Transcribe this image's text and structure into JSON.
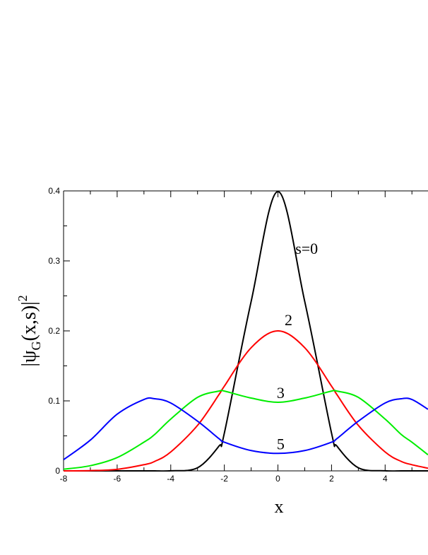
{
  "chart_data": {
    "type": "line",
    "title": "",
    "xlabel": "x",
    "ylabel": {
      "base": "|ψ",
      "subscript": "G",
      "middle": "(x,s)|",
      "superscript": "2"
    },
    "xlim": [
      -8,
      5.6
    ],
    "ylim": [
      0,
      0.4
    ],
    "x_ticks": [
      -8,
      -6,
      -4,
      -2,
      0,
      2,
      4
    ],
    "x_tick_labels": [
      "-8",
      "-6",
      "-4",
      "-2",
      "0",
      "2",
      "4"
    ],
    "y_ticks": [
      0,
      0.1,
      0.2,
      0.3,
      0.4
    ],
    "y_tick_labels": [
      "0",
      "0.1",
      "0.2",
      "0.3",
      "0.4"
    ],
    "grid": false,
    "x": [
      -8,
      -7,
      -6,
      -5,
      -4.6,
      -4,
      -3,
      -2.2,
      -2,
      -1,
      0,
      1,
      2,
      2.2,
      3,
      4,
      4.6,
      5,
      5.6
    ],
    "series": [
      {
        "label": "s=0",
        "color": "#000000",
        "values": [
          0.0,
          0.0,
          0.0,
          0.0,
          0.0,
          0.0001,
          0.0044,
          0.0355,
          0.054,
          0.242,
          0.399,
          0.242,
          0.054,
          0.0355,
          0.0044,
          0.0001,
          0.0,
          0.0,
          0.0
        ]
      },
      {
        "label": "2",
        "color": "#ff0000",
        "values": [
          0.0,
          0.0004,
          0.0022,
          0.0088,
          0.0135,
          0.027,
          0.065,
          0.109,
          0.121,
          0.176,
          0.2,
          0.176,
          0.121,
          0.109,
          0.065,
          0.027,
          0.0135,
          0.0088,
          0.0038
        ]
      },
      {
        "label": "3",
        "color": "#00ee00",
        "values": [
          0.0023,
          0.0074,
          0.019,
          0.041,
          0.052,
          0.074,
          0.105,
          0.114,
          0.114,
          0.104,
          0.098,
          0.104,
          0.114,
          0.114,
          0.105,
          0.074,
          0.052,
          0.041,
          0.023
        ]
      },
      {
        "label": "5",
        "color": "#0000ff",
        "values": [
          0.016,
          0.044,
          0.081,
          0.102,
          0.103,
          0.097,
          0.071,
          0.046,
          0.041,
          0.029,
          0.025,
          0.029,
          0.041,
          0.046,
          0.071,
          0.097,
          0.103,
          0.102,
          0.088
        ]
      }
    ],
    "annotations": [
      "s=0",
      "2",
      "3",
      "5"
    ]
  }
}
